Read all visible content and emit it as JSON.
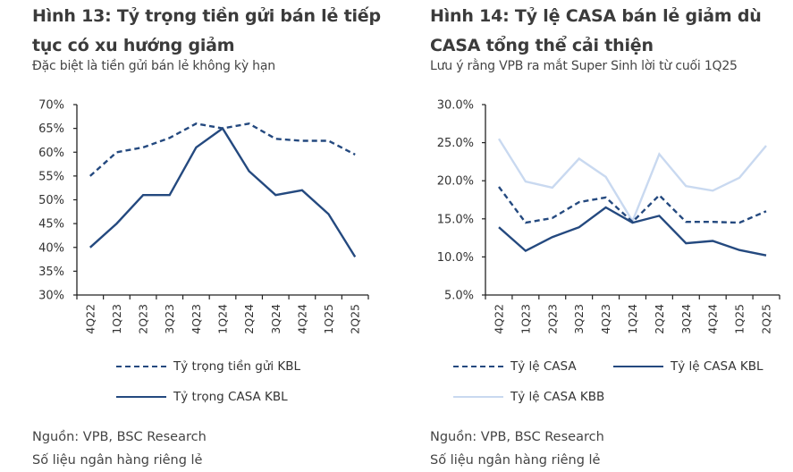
{
  "chart_data": [
    {
      "type": "line",
      "title": "Hình 13: Tỷ trọng tiền gửi bán lẻ tiếp tục có xu hướng giảm",
      "subtitle": "Đặc biệt là tiền gửi bán lẻ không kỳ hạn",
      "xlabel": "",
      "ylabel": "",
      "ylim": [
        30,
        70
      ],
      "yticks": [
        "70%",
        "65%",
        "60%",
        "55%",
        "50%",
        "45%",
        "40%",
        "35%",
        "30%"
      ],
      "ytick_values": [
        70,
        65,
        60,
        55,
        50,
        45,
        40,
        35,
        30
      ],
      "categories": [
        "4Q22",
        "1Q23",
        "2Q23",
        "3Q23",
        "4Q23",
        "1Q24",
        "2Q24",
        "3Q24",
        "4Q24",
        "1Q25",
        "2Q25"
      ],
      "series": [
        {
          "name": "Tỷ trọng tiền gửi KBL",
          "style": "dashed",
          "color": "#24497f",
          "values": [
            55,
            60,
            61,
            63,
            66,
            65,
            66,
            62.8,
            62.4,
            62.4,
            59.5
          ]
        },
        {
          "name": "Tỷ trọng CASA KBL",
          "style": "solid",
          "color": "#24497f",
          "values": [
            40,
            45,
            51,
            51,
            61,
            65,
            56,
            51,
            52,
            47,
            38
          ]
        }
      ],
      "grid": false,
      "legend": "bottom",
      "source": "Nguồn: VPB, BSC Research",
      "note": "Số liệu ngân hàng riêng lẻ"
    },
    {
      "type": "line",
      "title": "Hình 14: Tỷ lệ CASA bán lẻ giảm dù CASA tổng thể cải thiện",
      "subtitle": "Lưu ý rằng VPB ra mắt Super Sinh lời từ cuối 1Q25",
      "xlabel": "",
      "ylabel": "",
      "ylim": [
        5,
        30
      ],
      "yticks": [
        "30.0%",
        "25.0%",
        "20.0%",
        "15.0%",
        "10.0%",
        "5.0%"
      ],
      "ytick_values": [
        30,
        25,
        20,
        15,
        10,
        5
      ],
      "categories": [
        "4Q22",
        "1Q23",
        "2Q23",
        "3Q23",
        "4Q23",
        "1Q24",
        "2Q24",
        "3Q24",
        "4Q24",
        "1Q25",
        "2Q25"
      ],
      "series": [
        {
          "name": "Tỷ lệ CASA",
          "style": "dashed",
          "color": "#24497f",
          "values": [
            19.2,
            14.5,
            15.1,
            17.2,
            17.8,
            14.6,
            18.1,
            14.6,
            14.6,
            14.5,
            16.0
          ]
        },
        {
          "name": "Tỷ lệ CASA KBL",
          "style": "solid",
          "color": "#24497f",
          "values": [
            13.9,
            10.8,
            12.6,
            13.9,
            16.5,
            14.5,
            15.4,
            11.8,
            12.1,
            10.9,
            10.2
          ]
        },
        {
          "name": "Tỷ lệ CASA KBB",
          "style": "solid",
          "color": "#c9d9f0",
          "values": [
            25.5,
            19.9,
            19.1,
            22.9,
            20.5,
            14.7,
            23.5,
            19.3,
            18.7,
            20.4,
            24.6
          ]
        }
      ],
      "grid": false,
      "legend": "bottom",
      "source": "Nguồn: VPB, BSC Research",
      "note": "Số liệu ngân hàng riêng lẻ"
    }
  ]
}
